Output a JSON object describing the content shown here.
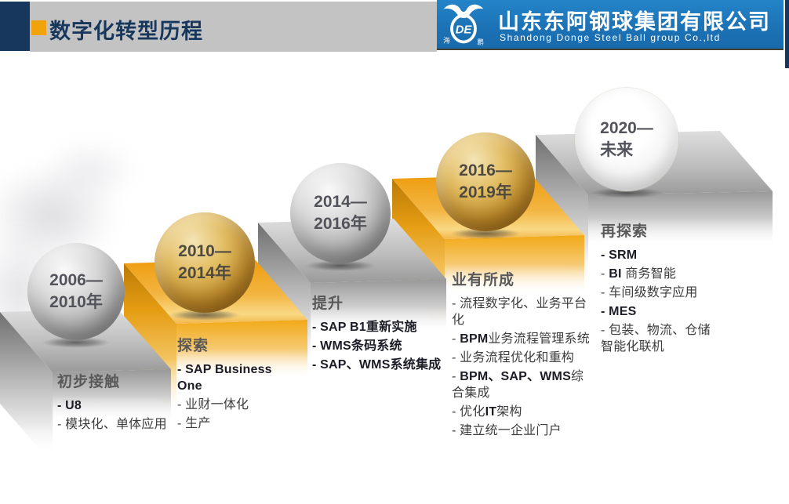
{
  "colors": {
    "navy": "#17375d",
    "accent": "#f0a30a",
    "bar_gray": "#c3c3c3",
    "banner_blue": "#1c73b6",
    "gold": "#ef9f10",
    "step_gray": "#a8a8a8",
    "title_gray": "#595959",
    "text_dark": "#3d3d3d"
  },
  "header": {
    "title": "数字化转型历程",
    "company_cn": "山东东阿钢球集团有限公司",
    "company_en": "Shandong  Donge  Steel  Ball  group  Co.,ltd",
    "logo": {
      "monogram": "DE",
      "left_char": "海",
      "right_char": "鹏"
    }
  },
  "stages": [
    {
      "year1": "2006—",
      "year2": "2010年",
      "sphere": "gray",
      "title": "初步接触",
      "bullets": [
        [
          {
            "t": "- U8",
            "b": true
          }
        ],
        [
          {
            "t": "- 模块化、单体应用",
            "b": false
          }
        ]
      ]
    },
    {
      "year1": "2010—",
      "year2": "2014年",
      "sphere": "gold",
      "title": "探索",
      "bullets": [
        [
          {
            "t": "- SAP Business One",
            "b": true
          }
        ],
        [
          {
            "t": "- 业财一体化",
            "b": false
          }
        ],
        [
          {
            "t": "- 生产",
            "b": false
          }
        ]
      ]
    },
    {
      "year1": "2014—",
      "year2": "2016年",
      "sphere": "gray",
      "title": "提升",
      "bullets": [
        [
          {
            "t": "- SAP B1重新实施",
            "b": true
          }
        ],
        [
          {
            "t": "- WMS条码系统",
            "b": true
          }
        ],
        [
          {
            "t": "- SAP、WMS系统集成",
            "b": true
          }
        ]
      ]
    },
    {
      "year1": "2016—",
      "year2": "2019年",
      "sphere": "gold",
      "title": "业有所成",
      "bullets": [
        [
          {
            "t": "- 流程数字化、业务平台化",
            "b": false
          }
        ],
        [
          {
            "t": "- ",
            "b": false
          },
          {
            "t": "BPM",
            "b": true
          },
          {
            "t": "业务流程管理系统",
            "b": false
          }
        ],
        [
          {
            "t": "- 业务流程优化和重构",
            "b": false
          }
        ],
        [
          {
            "t": "- ",
            "b": false
          },
          {
            "t": "BPM、SAP、WMS",
            "b": true
          },
          {
            "t": "综合集成",
            "b": false
          }
        ],
        [
          {
            "t": "- 优化",
            "b": false
          },
          {
            "t": "IT",
            "b": true
          },
          {
            "t": "架构",
            "b": false
          }
        ],
        [
          {
            "t": "- 建立统一企业门户",
            "b": false
          }
        ]
      ]
    },
    {
      "year1": "2020—",
      "year2": "未来",
      "sphere": "white",
      "title": "再探索",
      "bullets": [
        [
          {
            "t": "- SRM",
            "b": true
          }
        ],
        [
          {
            "t": "- ",
            "b": false
          },
          {
            "t": "BI",
            "b": true
          },
          {
            "t": " 商务智能",
            "b": false
          }
        ],
        [
          {
            "t": "- 车间级数字应用",
            "b": false
          }
        ],
        [
          {
            "t": "- MES",
            "b": true
          }
        ],
        [
          {
            "t": "- 包装、物流、仓储智能化联机",
            "b": false
          }
        ]
      ]
    }
  ]
}
